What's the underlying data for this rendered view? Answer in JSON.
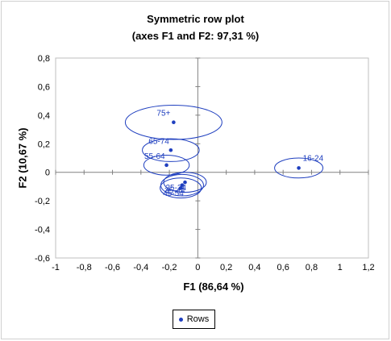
{
  "chart_data": {
    "type": "scatter",
    "title": "Symmetric row plot",
    "subtitle": "(axes F1 and F2: 97,31 %)",
    "xlabel": "F1 (86,64 %)",
    "ylabel": "F2 (10,67 %)",
    "xlim": [
      -1,
      1.2
    ],
    "ylim": [
      -0.6,
      0.8
    ],
    "xticks": [
      "-1",
      "-0,8",
      "-0,6",
      "-0,4",
      "-0,2",
      "0",
      "0,2",
      "0,4",
      "0,6",
      "0,8",
      "1",
      "1,2"
    ],
    "yticks": [
      "-0,6",
      "-0,4",
      "-0,2",
      "0",
      "0,2",
      "0,4",
      "0,6",
      "0,8"
    ],
    "grid": false,
    "legend": {
      "position": "bottom",
      "entries": [
        "Rows"
      ]
    },
    "series": [
      {
        "name": "Rows",
        "color": "#1f3fbf",
        "points": [
          {
            "label": "75+",
            "x": -0.17,
            "y": 0.35,
            "ellipse_rx": 0.34,
            "ellipse_ry": 0.12
          },
          {
            "label": "65-74",
            "x": -0.19,
            "y": 0.155,
            "ellipse_rx": 0.2,
            "ellipse_ry": 0.08
          },
          {
            "label": "55-64",
            "x": -0.22,
            "y": 0.05,
            "ellipse_rx": 0.16,
            "ellipse_ry": 0.07
          },
          {
            "label": "16-24",
            "x": 0.71,
            "y": 0.03,
            "ellipse_rx": 0.17,
            "ellipse_ry": 0.07
          },
          {
            "label": "25-34",
            "x": -0.09,
            "y": -0.07,
            "ellipse_rx": 0.15,
            "ellipse_ry": 0.07
          },
          {
            "label": "35-44",
            "x": -0.11,
            "y": -0.09,
            "ellipse_rx": 0.15,
            "ellipse_ry": 0.075
          },
          {
            "label": "45-54",
            "x": -0.12,
            "y": -0.11,
            "ellipse_rx": 0.145,
            "ellipse_ry": 0.07
          }
        ]
      }
    ]
  }
}
